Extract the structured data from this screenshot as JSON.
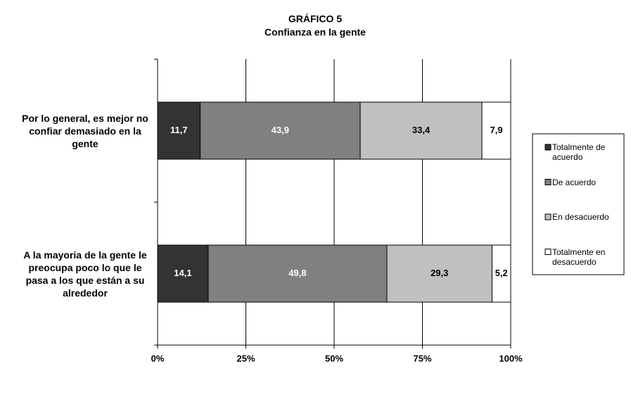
{
  "chart_data": {
    "type": "percent-stacked-bar",
    "title": "GRÁFICO 5",
    "subtitle": "Confianza en la gente",
    "categories": [
      "Por lo general, es mejor no confiar demasiado en la gente",
      "A la mayoria de la gente le preocupa poco lo que le pasa a los que están a su alrededor"
    ],
    "series": [
      {
        "name": "Totalmente de acuerdo",
        "color": "#333333",
        "label_color": "#ffffff",
        "values": [
          11.7,
          14.1
        ],
        "value_labels": [
          "11,7",
          "14,1"
        ]
      },
      {
        "name": "De acuerdo",
        "color": "#808080",
        "label_color": "#ffffff",
        "values": [
          43.9,
          49.8
        ],
        "value_labels": [
          "43,9",
          "49,8"
        ]
      },
      {
        "name": "En desacuerdo",
        "color": "#c0c0c0",
        "label_color": "#000000",
        "values": [
          33.4,
          29.3
        ],
        "value_labels": [
          "33,4",
          "29,3"
        ]
      },
      {
        "name": "Totalmente en desacuerdo",
        "color": "#ffffff",
        "label_color": "#000000",
        "values": [
          7.9,
          5.2
        ],
        "value_labels": [
          "7,9",
          "5,2"
        ]
      }
    ],
    "xlim": [
      0,
      100
    ],
    "xticks": [
      {
        "value": 0,
        "label": "0%"
      },
      {
        "value": 25,
        "label": "25%"
      },
      {
        "value": 50,
        "label": "50%"
      },
      {
        "value": 75,
        "label": "75%"
      },
      {
        "value": 100,
        "label": "100%"
      }
    ],
    "grid": true,
    "legend": "right"
  }
}
